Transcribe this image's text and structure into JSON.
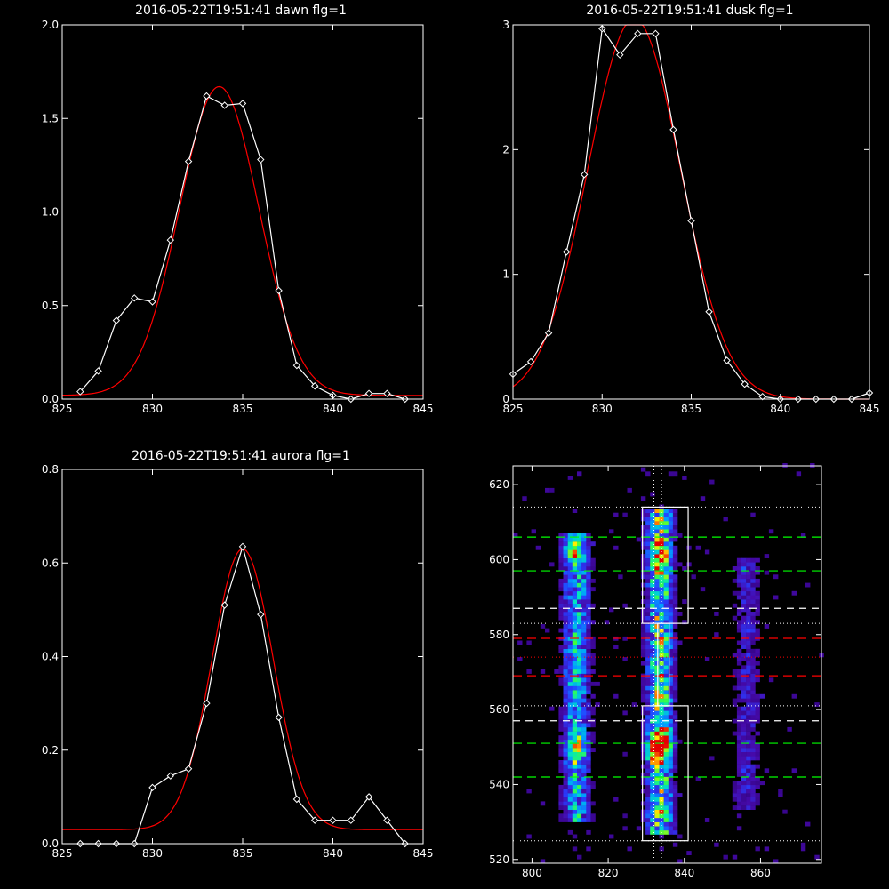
{
  "chart_data": [
    {
      "type": "line",
      "title": "2016-05-22T19:51:41 dawn flg=1",
      "xlim": [
        825,
        845
      ],
      "ylim": [
        0,
        2.0
      ],
      "xticks": [
        825,
        830,
        835,
        840,
        845
      ],
      "xtick_labels": [
        "825",
        "830",
        "835",
        "840",
        "845"
      ],
      "yticks": [
        0,
        0.5,
        1.0,
        1.5,
        2.0
      ],
      "ytick_labels": [
        "0.0",
        "0.5",
        "1.0",
        "1.5",
        "2.0"
      ],
      "series": [
        {
          "kind": "data",
          "color": "#ffffff",
          "marker": "diamond",
          "x": [
            826,
            827,
            828,
            829,
            830,
            831,
            832,
            833,
            834,
            835,
            836,
            837,
            838,
            839,
            840,
            841,
            842,
            843,
            844
          ],
          "y": [
            0.04,
            0.15,
            0.42,
            0.54,
            0.52,
            0.85,
            1.27,
            1.62,
            1.57,
            1.58,
            1.28,
            0.58,
            0.18,
            0.07,
            0.02,
            0.0,
            0.03,
            0.03,
            0.0
          ]
        },
        {
          "kind": "fit",
          "color": "#ff0000",
          "gauss": {
            "amp": 1.65,
            "center": 833.7,
            "sigma": 2.2,
            "base": 0.02
          }
        }
      ]
    },
    {
      "type": "line",
      "title": "2016-05-22T19:51:41 dusk flg=1",
      "xlim": [
        825,
        845
      ],
      "ylim": [
        0,
        3
      ],
      "xticks": [
        825,
        830,
        835,
        840,
        845
      ],
      "xtick_labels": [
        "825",
        "830",
        "835",
        "840",
        "845"
      ],
      "yticks": [
        0,
        1,
        2,
        3
      ],
      "ytick_labels": [
        "0",
        "1",
        "2",
        "3"
      ],
      "series": [
        {
          "kind": "data",
          "color": "#ffffff",
          "marker": "diamond",
          "x": [
            825,
            826,
            827,
            828,
            829,
            830,
            831,
            832,
            833,
            834,
            835,
            836,
            837,
            838,
            839,
            840,
            841,
            842,
            843,
            844,
            845
          ],
          "y": [
            0.2,
            0.3,
            0.53,
            1.18,
            1.8,
            2.97,
            2.76,
            2.93,
            2.93,
            2.16,
            1.43,
            0.7,
            0.31,
            0.12,
            0.02,
            0.0,
            0.0,
            0.0,
            0.0,
            0.0,
            0.05
          ]
        },
        {
          "kind": "fit",
          "color": "#ff0000",
          "gauss": {
            "amp": 3.05,
            "center": 831.8,
            "sigma": 2.6,
            "base": 0.0
          }
        }
      ]
    },
    {
      "type": "line",
      "title": "2016-05-22T19:51:41 aurora flg=1",
      "xlim": [
        825,
        845
      ],
      "ylim": [
        0,
        0.8
      ],
      "xticks": [
        825,
        830,
        835,
        840,
        845
      ],
      "xtick_labels": [
        "825",
        "830",
        "835",
        "840",
        "845"
      ],
      "yticks": [
        0,
        0.2,
        0.4,
        0.6,
        0.8
      ],
      "ytick_labels": [
        "0.0",
        "0.2",
        "0.4",
        "0.6",
        "0.8"
      ],
      "series": [
        {
          "kind": "data",
          "color": "#ffffff",
          "marker": "diamond",
          "x": [
            826,
            827,
            828,
            829,
            830,
            831,
            832,
            833,
            834,
            835,
            836,
            837,
            838,
            839,
            840,
            841,
            842,
            843,
            844
          ],
          "y": [
            0.0,
            0.0,
            0.0,
            0.0,
            0.12,
            0.145,
            0.16,
            0.3,
            0.51,
            0.635,
            0.49,
            0.27,
            0.095,
            0.05,
            0.05,
            0.05,
            0.1,
            0.05,
            0.0
          ]
        },
        {
          "kind": "fit",
          "color": "#ff0000",
          "gauss": {
            "amp": 0.6,
            "center": 835.0,
            "sigma": 1.7,
            "base": 0.03
          }
        }
      ]
    },
    {
      "type": "heatmap",
      "title": "",
      "xlim": [
        795,
        876
      ],
      "ylim": [
        519,
        625
      ],
      "xticks": [
        800,
        820,
        840,
        860
      ],
      "xtick_labels": [
        "800",
        "820",
        "840",
        "860"
      ],
      "yticks": [
        520,
        540,
        560,
        580,
        600,
        620
      ],
      "ytick_labels": [
        "520",
        "540",
        "560",
        "580",
        "600",
        "620"
      ],
      "columns": [
        {
          "x": 811,
          "ymin": 530,
          "ymax": 607,
          "peak": 0.75
        },
        {
          "x": 833,
          "ymin": 526,
          "ymax": 613,
          "peak": 1.0
        },
        {
          "x": 856,
          "ymin": 533,
          "ymax": 600,
          "peak": 0.3
        }
      ],
      "hot_spots": [
        {
          "x": 832,
          "y": 549,
          "value": 1.0
        },
        {
          "x": 834,
          "y": 551,
          "value": 0.7
        },
        {
          "x": 811,
          "y": 549,
          "value": 0.6
        },
        {
          "x": 833,
          "y": 600,
          "value": 0.55
        },
        {
          "x": 810,
          "y": 602,
          "value": 0.5
        }
      ],
      "boxes": [
        {
          "x0": 829,
          "x1": 841,
          "y0": 583,
          "y1": 614
        },
        {
          "x0": 829,
          "x1": 841,
          "y0": 525,
          "y1": 561
        },
        {
          "x0": 833,
          "x1": 836,
          "y0": 561,
          "y1": 583
        }
      ],
      "lines": {
        "white_dotted": [
          614,
          583,
          561,
          525
        ],
        "white_dashed": [
          587,
          557
        ],
        "green_dashed": [
          606,
          597,
          551,
          542
        ],
        "red_dashed": [
          579,
          569
        ],
        "red_dotted": [
          574
        ],
        "vertical_dotted": [
          832,
          834
        ]
      },
      "colors": {
        "green": "#00ff00",
        "red": "#ff0000",
        "white": "#ffffff"
      }
    }
  ]
}
